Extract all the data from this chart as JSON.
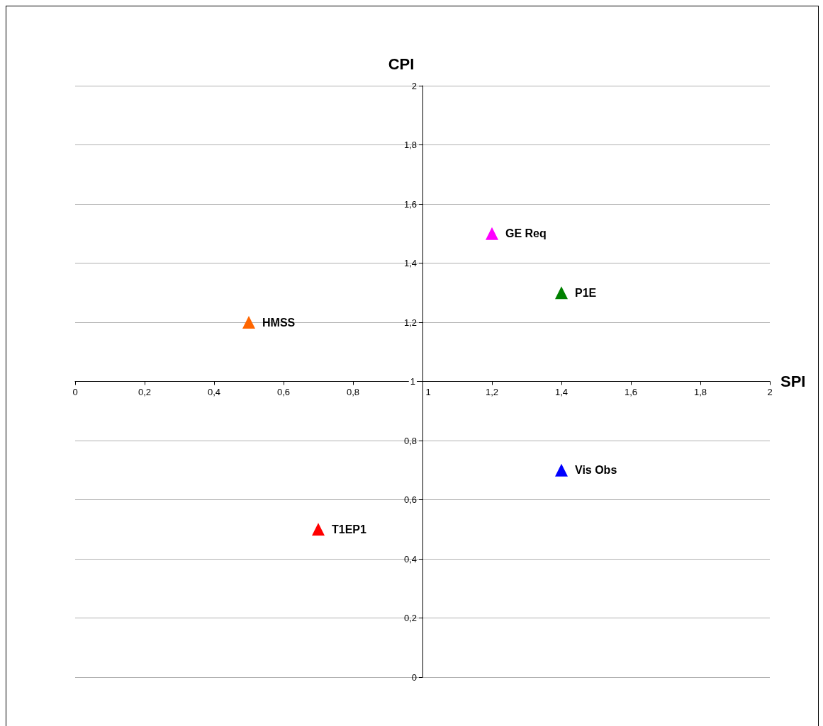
{
  "chart_data": {
    "type": "scatter",
    "xlabel": "SPI",
    "ylabel": "CPI",
    "xlim": [
      0,
      2
    ],
    "ylim": [
      0,
      2
    ],
    "xticks": [
      0,
      {
        "value": 0.2,
        "label": "0,2"
      },
      {
        "value": 0.4,
        "label": "0,4"
      },
      {
        "value": 0.6,
        "label": "0,6"
      },
      {
        "value": 0.8,
        "label": "0,8"
      },
      1,
      {
        "value": 1.2,
        "label": "1,2"
      },
      {
        "value": 1.4,
        "label": "1,4"
      },
      {
        "value": 1.6,
        "label": "1,6"
      },
      {
        "value": 1.8,
        "label": "1,8"
      },
      2
    ],
    "yticks": [
      0,
      {
        "value": 0.2,
        "label": "0,2"
      },
      {
        "value": 0.4,
        "label": "0,4"
      },
      {
        "value": 0.6,
        "label": "0,6"
      },
      {
        "value": 0.8,
        "label": "0,8"
      },
      1,
      {
        "value": 1.2,
        "label": "1,2"
      },
      {
        "value": 1.4,
        "label": "1,4"
      },
      {
        "value": 1.6,
        "label": "1,6"
      },
      {
        "value": 1.8,
        "label": "1,8"
      },
      2
    ],
    "grid": "y",
    "marker": "triangle",
    "legend": false,
    "series": [
      {
        "name": "HMSS",
        "color": "#ff6600",
        "x": [
          0.5
        ],
        "values": [
          1.2
        ]
      },
      {
        "name": "GE Req",
        "color": "#ff00ff",
        "x": [
          1.2
        ],
        "values": [
          1.5
        ]
      },
      {
        "name": "P1E",
        "color": "#008000",
        "x": [
          1.4
        ],
        "values": [
          1.3
        ]
      },
      {
        "name": "Vis Obs",
        "color": "#0000ff",
        "x": [
          1.4
        ],
        "values": [
          0.7
        ]
      },
      {
        "name": "T1EP1",
        "color": "#ff0000",
        "x": [
          0.7
        ],
        "values": [
          0.5
        ]
      }
    ]
  }
}
